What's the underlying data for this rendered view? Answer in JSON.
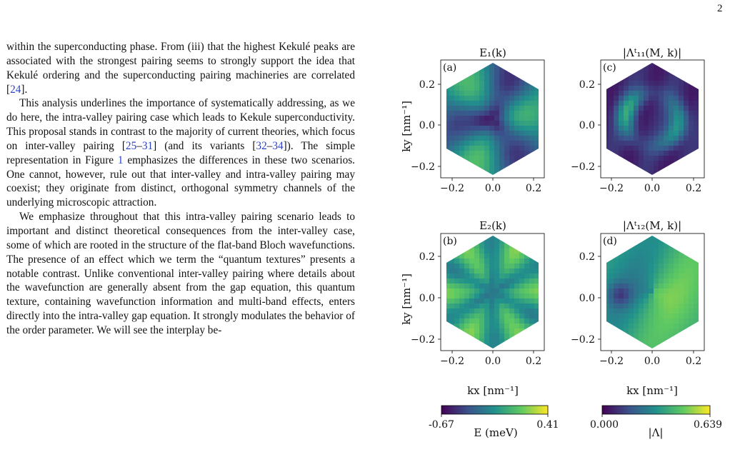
{
  "page_number": "2",
  "body": {
    "p1": [
      {
        "t": "within the superconducting phase. From (iii) that the highest Kekulé peaks are associated with the strongest pairing seems to strongly support the idea that Kekulé ordering and the superconducting pairing machineries are correlated ["
      },
      {
        "t": "24",
        "ref": true
      },
      {
        "t": "]."
      }
    ],
    "p2": [
      {
        "t": "This analysis underlines the importance of systematically addressing, as we do here, the intra-valley pairing case which leads to Kekule superconductivity. This proposal stands in contrast to the majority of current theories, which focus on inter-valley pairing ["
      },
      {
        "t": "25",
        "ref": true
      },
      {
        "t": "–"
      },
      {
        "t": "31",
        "ref": true
      },
      {
        "t": "] (and its variants ["
      },
      {
        "t": "32",
        "ref": true
      },
      {
        "t": "–"
      },
      {
        "t": "34",
        "ref": true
      },
      {
        "t": "]). The simple representation in Figure "
      },
      {
        "t": "1",
        "ref": true
      },
      {
        "t": " emphasizes the differences in these two scenarios. One cannot, however, rule out that inter-valley and intra-valley pairing may coexist; they originate from distinct, orthogonal symmetry channels of the underlying microscopic attraction."
      }
    ],
    "p3": [
      {
        "t": "We emphasize throughout that this intra-valley pairing scenario leads to important and distinct theoretical consequences from the inter-valley case, some of which are rooted in the structure of the flat-band Bloch wavefunctions. The presence of an effect which we term the “quantum textures” presents a notable contrast. Unlike conventional inter-valley pairing where details about the wavefunction are generally absent from the gap equation, this quantum texture, containing wavefunction information and multi-band effects, enters directly into the intra-valley gap equation. It strongly modulates the behavior of the order parameter. We will see the interplay be-"
      }
    ]
  },
  "figure": {
    "panels": [
      {
        "id": "a",
        "label": "(a)",
        "title": "E₁(k)",
        "colormap": "viridis",
        "pattern": "E1"
      },
      {
        "id": "c",
        "label": "(c)",
        "title": "|Λᵗ₁₁(M, k)|",
        "colormap": "viridis",
        "pattern": "L11"
      },
      {
        "id": "b",
        "label": "(b)",
        "title": "E₂(k)",
        "colormap": "viridis",
        "pattern": "E2"
      },
      {
        "id": "d",
        "label": "(d)",
        "title": "|Λᵗ₁₂(M, k)|",
        "colormap": "viridis",
        "pattern": "L12"
      }
    ],
    "x_ticks": [
      "−0.2",
      "0.0",
      "0.2"
    ],
    "y_ticks": [
      "0.2",
      "0.0",
      "−0.2"
    ],
    "x_label": "kx [nm⁻¹]",
    "y_label": "ky [nm⁻¹]",
    "colorbar_E": {
      "min": "-0.67",
      "max": "0.41",
      "label": "E (meV)"
    },
    "colorbar_L": {
      "min": "0.000",
      "max": "0.639",
      "label": "|Λ|"
    },
    "colors": {
      "viridis": [
        "#440154",
        "#3b528b",
        "#21918c",
        "#5ec962",
        "#fde725"
      ]
    }
  }
}
